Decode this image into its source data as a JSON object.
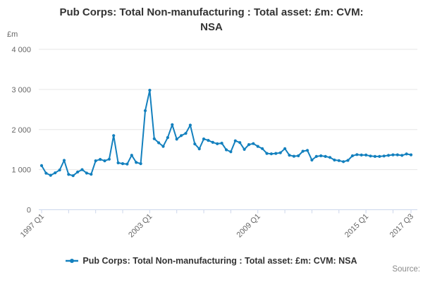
{
  "title_line1": "Pub Corps: Total Non-manufacturing : Total asset: £m: CVM:",
  "title_line2": "NSA",
  "y_axis": {
    "unit": "£m",
    "ticks": [
      {
        "value": 0,
        "label": "0"
      },
      {
        "value": 1000,
        "label": "1 000"
      },
      {
        "value": 2000,
        "label": "2 000"
      },
      {
        "value": 3000,
        "label": "3 000"
      },
      {
        "value": 4000,
        "label": "4 000"
      }
    ]
  },
  "x_axis": {
    "minor_tick_step": 6,
    "last_tick_index": 82,
    "labeled_ticks": [
      {
        "index": 0,
        "label": "1997 Q1"
      },
      {
        "index": 24,
        "label": "2003 Q1"
      },
      {
        "index": 48,
        "label": "2009 Q1"
      },
      {
        "index": 72,
        "label": "2015 Q1"
      },
      {
        "index": 82,
        "label": "2017 Q3"
      }
    ]
  },
  "legend": {
    "label": "Pub Corps: Total Non-manufacturing : Total asset: £m: CVM: NSA"
  },
  "source_label": "Source:",
  "colors": {
    "line": "#1380be",
    "grid": "#e6e6e6",
    "axis": "#ccd6eb",
    "tick_text": "#666666",
    "title_text": "#333333"
  },
  "chart_data": {
    "type": "line",
    "title": "Pub Corps: Total Non-manufacturing : Total asset: £m: CVM: NSA",
    "xlabel": "",
    "ylabel": "£m",
    "ylim": [
      0,
      4000
    ],
    "grid": true,
    "legend_position": "bottom",
    "series_name": "Pub Corps: Total Non-manufacturing : Total asset: £m: CVM: NSA",
    "categories": [
      "1997 Q1",
      "1997 Q2",
      "1997 Q3",
      "1997 Q4",
      "1998 Q1",
      "1998 Q2",
      "1998 Q3",
      "1998 Q4",
      "1999 Q1",
      "1999 Q2",
      "1999 Q3",
      "1999 Q4",
      "2000 Q1",
      "2000 Q2",
      "2000 Q3",
      "2000 Q4",
      "2001 Q1",
      "2001 Q2",
      "2001 Q3",
      "2001 Q4",
      "2002 Q1",
      "2002 Q2",
      "2002 Q3",
      "2002 Q4",
      "2003 Q1",
      "2003 Q2",
      "2003 Q3",
      "2003 Q4",
      "2004 Q1",
      "2004 Q2",
      "2004 Q3",
      "2004 Q4",
      "2005 Q1",
      "2005 Q2",
      "2005 Q3",
      "2005 Q4",
      "2006 Q1",
      "2006 Q2",
      "2006 Q3",
      "2006 Q4",
      "2007 Q1",
      "2007 Q2",
      "2007 Q3",
      "2007 Q4",
      "2008 Q1",
      "2008 Q2",
      "2008 Q3",
      "2008 Q4",
      "2009 Q1",
      "2009 Q2",
      "2009 Q3",
      "2009 Q4",
      "2010 Q1",
      "2010 Q2",
      "2010 Q3",
      "2010 Q4",
      "2011 Q1",
      "2011 Q2",
      "2011 Q3",
      "2011 Q4",
      "2012 Q1",
      "2012 Q2",
      "2012 Q3",
      "2012 Q4",
      "2013 Q1",
      "2013 Q2",
      "2013 Q3",
      "2013 Q4",
      "2014 Q1",
      "2014 Q2",
      "2014 Q3",
      "2014 Q4",
      "2015 Q1",
      "2015 Q2",
      "2015 Q3",
      "2015 Q4",
      "2016 Q1",
      "2016 Q2",
      "2016 Q3",
      "2016 Q4",
      "2017 Q1",
      "2017 Q2",
      "2017 Q3"
    ],
    "values": [
      1100,
      910,
      860,
      920,
      990,
      1230,
      880,
      850,
      940,
      1000,
      915,
      885,
      1220,
      1255,
      1220,
      1260,
      1850,
      1170,
      1150,
      1140,
      1360,
      1180,
      1150,
      2470,
      2980,
      1770,
      1670,
      1580,
      1800,
      2120,
      1760,
      1850,
      1905,
      2110,
      1640,
      1520,
      1765,
      1730,
      1680,
      1645,
      1660,
      1495,
      1445,
      1720,
      1675,
      1505,
      1625,
      1650,
      1580,
      1525,
      1405,
      1395,
      1405,
      1420,
      1525,
      1360,
      1335,
      1345,
      1460,
      1480,
      1240,
      1330,
      1345,
      1330,
      1305,
      1240,
      1225,
      1200,
      1230,
      1345,
      1375,
      1365,
      1365,
      1340,
      1330,
      1330,
      1340,
      1355,
      1370,
      1370,
      1355,
      1390,
      1370
    ]
  }
}
